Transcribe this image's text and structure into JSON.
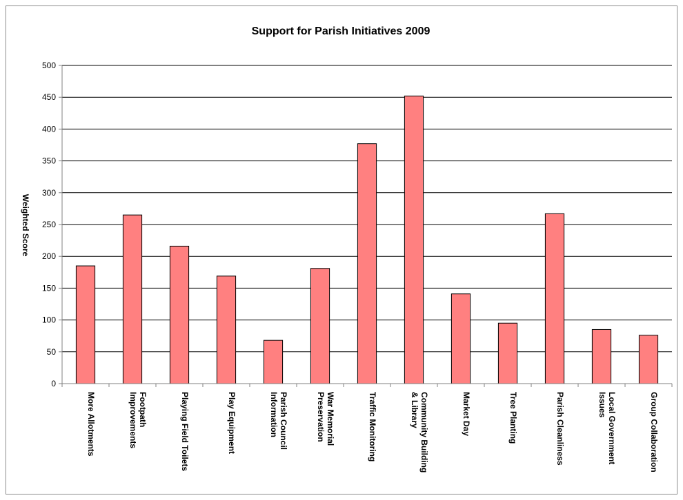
{
  "chart_data": {
    "type": "bar",
    "title": "Support for Parish Initiatives 2009",
    "xlabel": "",
    "ylabel": "Weighted Score",
    "ylim": [
      0,
      500
    ],
    "yticks": [
      0,
      50,
      100,
      150,
      200,
      250,
      300,
      350,
      400,
      450,
      500
    ],
    "grid": true,
    "legend": "none",
    "categories": [
      [
        "More Allotments"
      ],
      [
        "Footpath",
        "Improvements"
      ],
      [
        "Playing Field Toilets"
      ],
      [
        "Play Equipment"
      ],
      [
        "Parish Council",
        "Information"
      ],
      [
        "War Memorial",
        "Preservation"
      ],
      [
        "Traffic Monitoring"
      ],
      [
        "Community Building",
        "& Library"
      ],
      [
        "Market Day"
      ],
      [
        "Tree Planting"
      ],
      [
        "Parish Cleanliness"
      ],
      [
        "Local Government",
        "Issues"
      ],
      [
        "Group Collaboration"
      ]
    ],
    "values": [
      185,
      265,
      216,
      169,
      68,
      181,
      377,
      452,
      141,
      95,
      267,
      85,
      76
    ],
    "colors": {
      "bar_fill": "#ff8080",
      "bar_stroke": "#000000",
      "grid": "#000000",
      "axis": "#808080"
    }
  }
}
